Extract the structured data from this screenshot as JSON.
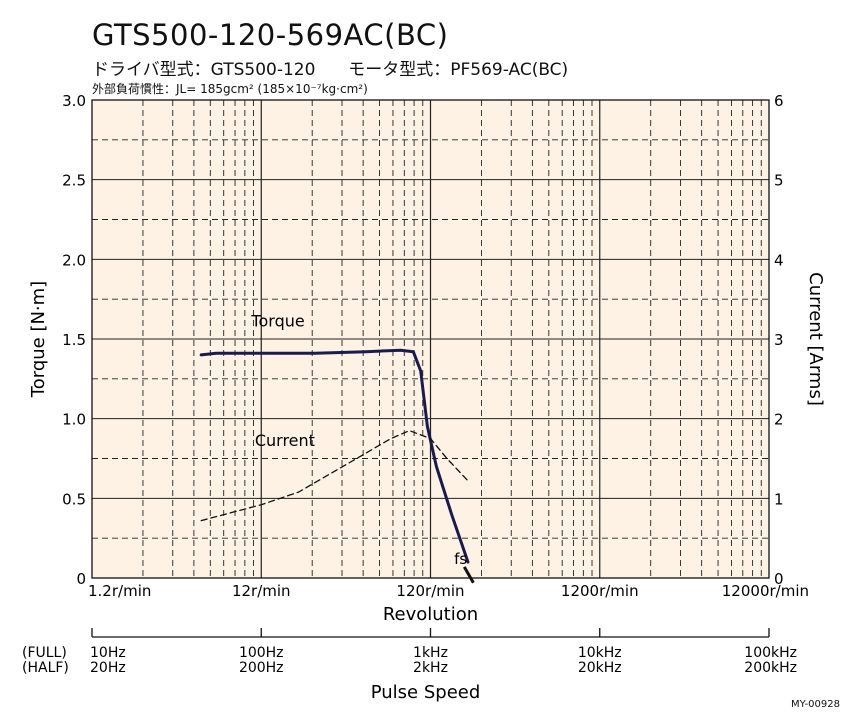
{
  "header": {
    "title": "GTS500-120-569AC(BC)",
    "subtitle_driver": "ドライバ型式：GTS500-120",
    "subtitle_motor": "モータ型式：PF569-AC(BC)",
    "inertia_label": "外部負荷慣性：",
    "inertia_value": "JL= 185gcm² (185×10⁻⁷kg·cm²)"
  },
  "code": "MY-00928",
  "chart_data": {
    "type": "line",
    "title": "GTS500-120-569AC(BC)",
    "xlabel": "Revolution",
    "x2label": "Pulse Speed",
    "ylabel": "Torque [N·m]",
    "y2label": "Current [Arms]",
    "xscale": "log",
    "xlim": [
      1.2,
      12000
    ],
    "ylim": [
      0,
      3.0
    ],
    "y2lim": [
      0,
      6
    ],
    "x_ticks": [
      "1.2r/min",
      "12r/min",
      "120r/min",
      "1200r/min",
      "12000r/min"
    ],
    "y_ticks": [
      "0",
      "0.5",
      "1.0",
      "1.5",
      "2.0",
      "2.5",
      "3.0"
    ],
    "y2_ticks": [
      "0",
      "1",
      "2",
      "3",
      "4",
      "5",
      "6"
    ],
    "pulse_rows": [
      {
        "label": "(FULL)",
        "ticks": [
          "10Hz",
          "100Hz",
          "1kHz",
          "10kHz",
          "100kHz"
        ]
      },
      {
        "label": "(HALF)",
        "ticks": [
          "20Hz",
          "200Hz",
          "2kHz",
          "20kHz",
          "200kHz"
        ]
      }
    ],
    "series": [
      {
        "name": "Torque",
        "axis": "left",
        "style": "solid",
        "x": [
          5.3,
          6.5,
          12,
          25,
          50,
          80,
          95,
          105,
          115,
          130,
          160,
          200
        ],
        "y": [
          1.4,
          1.41,
          1.41,
          1.41,
          1.42,
          1.43,
          1.42,
          1.3,
          0.95,
          0.7,
          0.4,
          0.1
        ]
      },
      {
        "name": "Current",
        "axis": "right",
        "style": "dashed",
        "x": [
          5.3,
          12,
          20,
          40,
          70,
          90,
          120,
          150,
          200
        ],
        "y": [
          0.72,
          0.92,
          1.08,
          1.45,
          1.75,
          1.85,
          1.75,
          1.5,
          1.22
        ]
      }
    ],
    "annotations": [
      {
        "text": "fs",
        "x": 170,
        "y": 0.05,
        "line": {
          "x": [
            190,
            215
          ],
          "y": [
            0.07,
            -0.03
          ]
        }
      }
    ],
    "grid": true,
    "background": "#fdf2e3",
    "line_color": "#1a1a4e"
  }
}
